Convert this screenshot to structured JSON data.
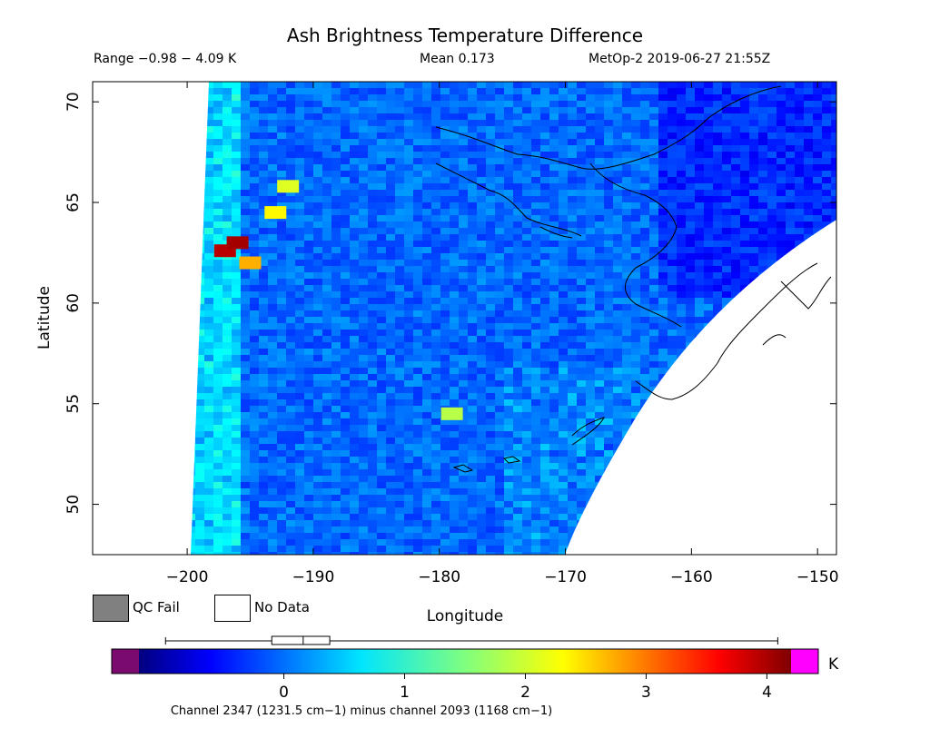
{
  "chart_data": {
    "type": "heatmap",
    "title": "Ash Brightness Temperature Difference",
    "range_text": "Range −0.98 − 4.09 K",
    "mean_text": "Mean 0.173",
    "source_text": "MetOp-2 2019-06-27 21:55Z",
    "xlabel": "Longitude",
    "ylabel": "Latitude",
    "xlim": [
      -207.5,
      -148.5
    ],
    "ylim": [
      47.5,
      71
    ],
    "xticks": [
      -200,
      -190,
      -180,
      -170,
      -160,
      -150
    ],
    "xtick_labels": [
      "−200",
      "−190",
      "−180",
      "−170",
      "−160",
      "−150"
    ],
    "yticks": [
      50,
      55,
      60,
      65,
      70
    ],
    "ytick_labels": [
      "50",
      "55",
      "60",
      "65",
      "70"
    ],
    "value_range": [
      -0.98,
      4.09
    ],
    "mean": 0.173,
    "colorbar": {
      "unit": "K",
      "ticks": [
        0,
        1,
        2,
        3,
        4
      ],
      "tick_labels": [
        "0",
        "1",
        "2",
        "3",
        "4"
      ],
      "range": [
        -1.2,
        4.2
      ],
      "under_color": "#7a0a6e",
      "over_color": "#ff00ff",
      "boxplot": {
        "min": -0.98,
        "q1": -0.1,
        "median": 0.16,
        "q3": 0.38,
        "max": 4.09
      }
    },
    "caption": "Channel 2347 (1231.5 cm−1) minus channel 2093 (1168 cm−1)",
    "hotspots": [
      {
        "lon": -197,
        "lat": 62.6,
        "value": 3.9
      },
      {
        "lon": -196,
        "lat": 63.0,
        "value": 4.0
      },
      {
        "lon": -193,
        "lat": 64.5,
        "value": 2.2
      },
      {
        "lon": -192,
        "lat": 65.8,
        "value": 2.0
      },
      {
        "lon": -195,
        "lat": 62.0,
        "value": 2.6
      },
      {
        "lon": -179,
        "lat": 54.5,
        "value": 1.8
      }
    ]
  },
  "legend": {
    "qc_fail_label": "QC Fail",
    "no_data_label": "No Data",
    "qc_fail_color": "#808080",
    "no_data_color": "#ffffff"
  }
}
